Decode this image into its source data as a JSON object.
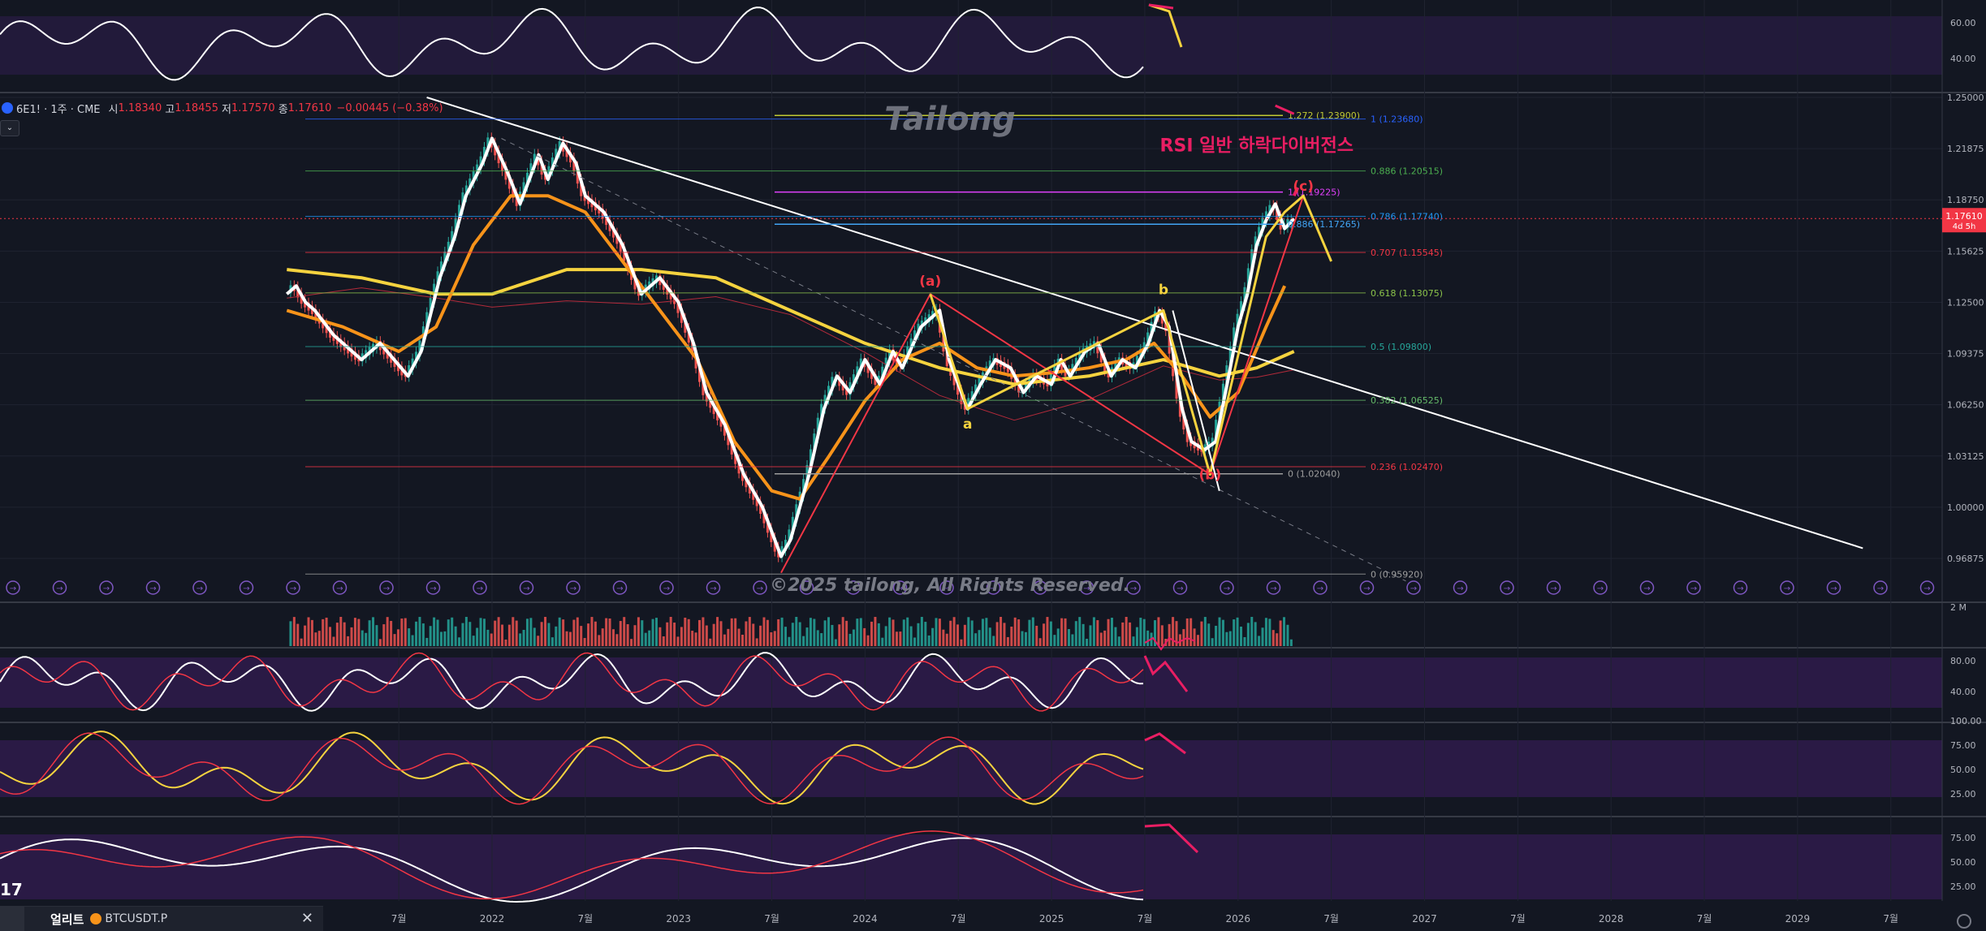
{
  "header": {
    "symbol": "6E1! · 1주 · CME",
    "open_label": "시",
    "open": "1.18340",
    "high_label": "고",
    "high": "1.18455",
    "low_label": "저",
    "low": "1.17570",
    "close_label": "종",
    "close": "1.17610",
    "change": "−0.00445 (−0.38%)"
  },
  "watermark": "Tailong",
  "copyright": "©2025 tailong, All Rights Reserved.",
  "alert": {
    "title": "얼리트",
    "symbol": "BTCUSDT.P",
    "close_icon": "close-icon"
  },
  "corner_mark": "17",
  "colors": {
    "bg": "#131722",
    "price": "#ffffff",
    "ma_fast": "#f7931a",
    "ma_slow": "#f5d33f",
    "wave_red": "#f23645",
    "magenta": "#e91e63",
    "rsi_band": "#2a1a45"
  },
  "chart_data": {
    "type": "line",
    "title": "6E1! · 1주 · CME",
    "annotation_title": "RSI 일반 하락다이버전스",
    "x_ticks": [
      "7월",
      "2022",
      "7월",
      "2023",
      "7월",
      "2024",
      "7월",
      "2025",
      "7월",
      "2026",
      "7월",
      "2027",
      "7월",
      "2028",
      "7월",
      "2029",
      "7월"
    ],
    "y_ticks": [
      "1.25000",
      "1.21875",
      "1.18750",
      "1.15625",
      "1.12500",
      "1.09375",
      "1.06250",
      "1.03125",
      "1.00000",
      "0.96875"
    ],
    "ylim": [
      0.955,
      1.255
    ],
    "current_price": {
      "value": "1.17610",
      "countdown": "4d 5h"
    },
    "price_series": [
      [
        2020.9,
        1.13
      ],
      [
        2020.95,
        1.135
      ],
      [
        2021.0,
        1.125
      ],
      [
        2021.05,
        1.12
      ],
      [
        2021.15,
        1.105
      ],
      [
        2021.3,
        1.09
      ],
      [
        2021.4,
        1.1
      ],
      [
        2021.55,
        1.08
      ],
      [
        2021.62,
        1.095
      ],
      [
        2021.72,
        1.14
      ],
      [
        2021.8,
        1.165
      ],
      [
        2021.86,
        1.19
      ],
      [
        2021.95,
        1.21
      ],
      [
        2022.0,
        1.225
      ],
      [
        2022.08,
        1.205
      ],
      [
        2022.15,
        1.185
      ],
      [
        2022.25,
        1.215
      ],
      [
        2022.3,
        1.2
      ],
      [
        2022.38,
        1.222
      ],
      [
        2022.45,
        1.21
      ],
      [
        2022.5,
        1.19
      ],
      [
        2022.6,
        1.18
      ],
      [
        2022.7,
        1.16
      ],
      [
        2022.8,
        1.13
      ],
      [
        2022.9,
        1.14
      ],
      [
        2023.0,
        1.125
      ],
      [
        2023.08,
        1.1
      ],
      [
        2023.15,
        1.07
      ],
      [
        2023.25,
        1.05
      ],
      [
        2023.35,
        1.02
      ],
      [
        2023.45,
        1.0
      ],
      [
        2023.55,
        0.97
      ],
      [
        2023.6,
        0.98
      ],
      [
        2023.7,
        1.02
      ],
      [
        2023.78,
        1.06
      ],
      [
        2023.85,
        1.08
      ],
      [
        2023.92,
        1.07
      ],
      [
        2024.0,
        1.09
      ],
      [
        2024.08,
        1.075
      ],
      [
        2024.15,
        1.095
      ],
      [
        2024.2,
        1.085
      ],
      [
        2024.3,
        1.11
      ],
      [
        2024.4,
        1.12
      ],
      [
        2024.45,
        1.09
      ],
      [
        2024.55,
        1.06
      ],
      [
        2024.62,
        1.075
      ],
      [
        2024.7,
        1.09
      ],
      [
        2024.78,
        1.085
      ],
      [
        2024.85,
        1.07
      ],
      [
        2024.92,
        1.08
      ],
      [
        2025.0,
        1.075
      ],
      [
        2025.05,
        1.09
      ],
      [
        2025.1,
        1.08
      ],
      [
        2025.18,
        1.095
      ],
      [
        2025.25,
        1.1
      ],
      [
        2025.32,
        1.08
      ],
      [
        2025.38,
        1.09
      ],
      [
        2025.45,
        1.085
      ],
      [
        2025.52,
        1.1
      ],
      [
        2025.58,
        1.12
      ],
      [
        2025.63,
        1.11
      ],
      [
        2025.7,
        1.06
      ],
      [
        2025.75,
        1.04
      ],
      [
        2025.82,
        1.035
      ],
      [
        2025.88,
        1.04
      ],
      [
        2025.95,
        1.08
      ],
      [
        2026.0,
        1.11
      ],
      [
        2026.05,
        1.13
      ],
      [
        2026.1,
        1.16
      ],
      [
        2026.15,
        1.175
      ],
      [
        2026.2,
        1.185
      ],
      [
        2026.25,
        1.17
      ],
      [
        2026.3,
        1.176
      ]
    ],
    "series_orange_ma": [
      [
        2020.9,
        1.12
      ],
      [
        2021.2,
        1.11
      ],
      [
        2021.5,
        1.095
      ],
      [
        2021.7,
        1.11
      ],
      [
        2021.9,
        1.16
      ],
      [
        2022.1,
        1.19
      ],
      [
        2022.3,
        1.19
      ],
      [
        2022.5,
        1.18
      ],
      [
        2022.7,
        1.15
      ],
      [
        2022.9,
        1.12
      ],
      [
        2023.1,
        1.09
      ],
      [
        2023.3,
        1.04
      ],
      [
        2023.5,
        1.01
      ],
      [
        2023.65,
        1.005
      ],
      [
        2023.8,
        1.03
      ],
      [
        2024.0,
        1.065
      ],
      [
        2024.2,
        1.09
      ],
      [
        2024.4,
        1.1
      ],
      [
        2024.6,
        1.085
      ],
      [
        2024.8,
        1.08
      ],
      [
        2025.0,
        1.082
      ],
      [
        2025.2,
        1.085
      ],
      [
        2025.4,
        1.09
      ],
      [
        2025.55,
        1.1
      ],
      [
        2025.7,
        1.08
      ],
      [
        2025.85,
        1.055
      ],
      [
        2026.0,
        1.07
      ],
      [
        2026.15,
        1.11
      ],
      [
        2026.25,
        1.135
      ]
    ],
    "series_yellow_ma": [
      [
        2020.9,
        1.145
      ],
      [
        2021.3,
        1.14
      ],
      [
        2021.7,
        1.13
      ],
      [
        2022.0,
        1.13
      ],
      [
        2022.4,
        1.145
      ],
      [
        2022.8,
        1.145
      ],
      [
        2023.2,
        1.14
      ],
      [
        2023.6,
        1.12
      ],
      [
        2024.0,
        1.1
      ],
      [
        2024.4,
        1.085
      ],
      [
        2024.8,
        1.075
      ],
      [
        2025.2,
        1.08
      ],
      [
        2025.6,
        1.09
      ],
      [
        2025.9,
        1.08
      ],
      [
        2026.1,
        1.085
      ],
      [
        2026.3,
        1.095
      ]
    ],
    "trendline": [
      [
        2021.65,
        1.25
      ],
      [
        2029.35,
        0.975
      ]
    ],
    "dashed_trendline": [
      [
        2022.05,
        1.225
      ],
      [
        2026.9,
        0.955
      ]
    ],
    "wave_labels": [
      {
        "label": "(a)",
        "x": 2024.35,
        "y": 1.135,
        "color": "#f23645"
      },
      {
        "label": "a",
        "x": 2024.55,
        "y": 1.048,
        "color": "#f5d33f"
      },
      {
        "label": "b",
        "x": 2025.6,
        "y": 1.13,
        "color": "#f5d33f"
      },
      {
        "label": "(b)",
        "x": 2025.85,
        "y": 1.017,
        "color": "#f23645"
      },
      {
        "label": "(c)",
        "x": 2026.35,
        "y": 1.193,
        "color": "#f23645"
      }
    ],
    "fib_levels": [
      {
        "label": "1.272 (1.23900)",
        "value": 1.239
      },
      {
        "label": "1 (1.19225)",
        "value": 1.19225
      },
      {
        "label": "0.886 (1.17265)",
        "value": 1.17265
      },
      {
        "label": "0 (1.02040)",
        "value": 1.0204
      }
    ],
    "fib_levels_right": [
      {
        "label": "1 (1.23680)",
        "value": 1.2368
      },
      {
        "label": "0.886 (1.20515)",
        "value": 1.20515
      },
      {
        "label": "0.786 (1.17740)",
        "value": 1.1774
      },
      {
        "label": "0.707 (1.15545)",
        "value": 1.15545
      },
      {
        "label": "0.618 (1.13075)",
        "value": 1.13075
      },
      {
        "label": "0.5 (1.09800)",
        "value": 1.098
      },
      {
        "label": "0.382 (1.06525)",
        "value": 1.06525
      },
      {
        "label": "0.236 (1.02470)",
        "value": 1.0247
      },
      {
        "label": "0 (0.95920)",
        "value": 0.9592
      }
    ],
    "volume_label": "2 M",
    "indicator_top": {
      "ticks": [
        "60.00",
        "40.00"
      ]
    },
    "indicator_rsi": {
      "ticks": [
        "80.00",
        "40.00"
      ]
    },
    "indicator_stoch": {
      "ticks": [
        "100.00",
        "75.00",
        "50.00",
        "25.00"
      ]
    },
    "indicator_bottom": {
      "ticks": [
        "75.00",
        "50.00",
        "25.00"
      ]
    }
  }
}
